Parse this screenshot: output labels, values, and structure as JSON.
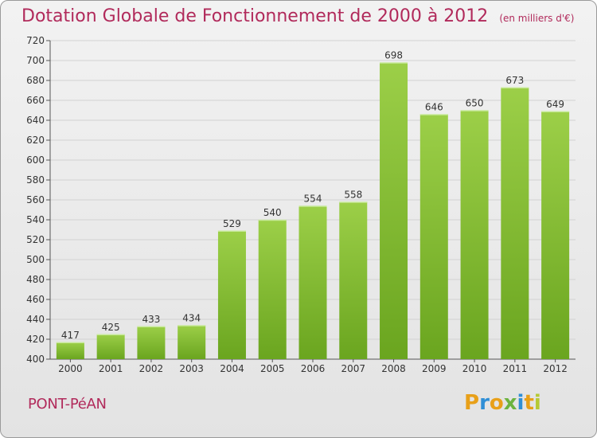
{
  "header": {
    "title": "Dotation Globale de Fonctionnement de 2000 à 2012",
    "unit": "(en milliers d'€)"
  },
  "commune": "PONT-PéAN",
  "logo": {
    "letters": [
      "P",
      "r",
      "o",
      "x",
      "i",
      "t",
      "i"
    ],
    "colors": [
      "#e8a019",
      "#2f8fd6",
      "#e8a019",
      "#6cb33f",
      "#2f8fd6",
      "#e8a019",
      "#b5c933"
    ]
  },
  "chart_data": {
    "type": "bar",
    "categories": [
      "2000",
      "2001",
      "2002",
      "2003",
      "2004",
      "2005",
      "2006",
      "2007",
      "2008",
      "2009",
      "2010",
      "2011",
      "2012"
    ],
    "values": [
      417,
      425,
      433,
      434,
      529,
      540,
      554,
      558,
      698,
      646,
      650,
      673,
      649
    ],
    "ylim": [
      400,
      720
    ],
    "yticks": [
      400,
      420,
      440,
      460,
      480,
      500,
      520,
      540,
      560,
      580,
      600,
      620,
      640,
      660,
      680,
      700,
      720
    ],
    "grid": true,
    "bar_colors": [
      "#9ccf48",
      "#6aa51f"
    ]
  }
}
